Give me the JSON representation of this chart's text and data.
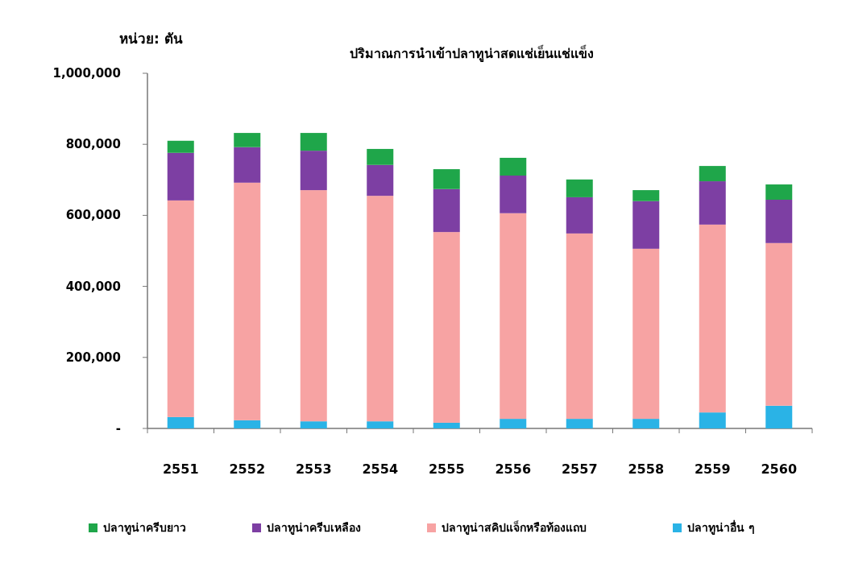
{
  "chart_data": {
    "type": "bar",
    "title": "ปริมาณการนำเข้าปลาทูน่าสดแช่เย็นแช่แข็ง",
    "ylabel": "หน่วย: ตัน",
    "stacked": true,
    "legend": "bottom",
    "categories": [
      "2551",
      "2552",
      "2553",
      "2554",
      "2555",
      "2556",
      "2557",
      "2558",
      "2559",
      "2560"
    ],
    "ylim": [
      0,
      1000000
    ],
    "yticks": [
      {
        "value": 0,
        "label": "-"
      },
      {
        "value": 200000,
        "label": "200,000"
      },
      {
        "value": 400000,
        "label": "400,000"
      },
      {
        "value": 600000,
        "label": "600,000"
      },
      {
        "value": 800000,
        "label": "800,000"
      },
      {
        "value": 1000000,
        "label": "1,000,000"
      }
    ],
    "series": [
      {
        "name": "ปลาทูน่าอื่น ๆ",
        "color": "#2ab3e6",
        "values": [
          32000,
          23000,
          20000,
          20000,
          16000,
          27000,
          27000,
          27000,
          45000,
          64000
        ]
      },
      {
        "name": "ปลาทูน่าสคิปแจ็กหรือท้องแถบ",
        "color": "#f7a3a3",
        "values": [
          610000,
          669000,
          651000,
          635000,
          537000,
          579000,
          522000,
          479000,
          529000,
          458000
        ]
      },
      {
        "name": "ปลาทูน่าครีบเหลือง",
        "color": "#7d3fa3",
        "values": [
          134000,
          100000,
          111000,
          87000,
          121000,
          106000,
          102000,
          134000,
          122000,
          122000
        ]
      },
      {
        "name": "ปลาทูน่าครีบยาว",
        "color": "#1fa64a",
        "values": [
          34000,
          40000,
          50000,
          45000,
          56000,
          50000,
          50000,
          31000,
          43000,
          43000
        ]
      }
    ]
  }
}
